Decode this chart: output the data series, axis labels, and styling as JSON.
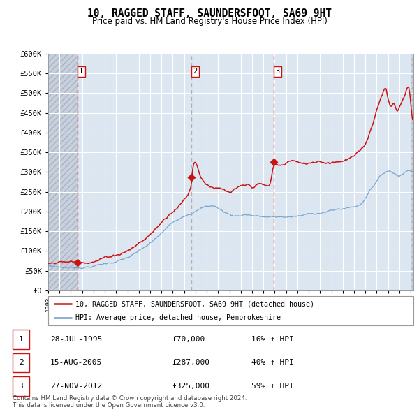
{
  "title": "10, RAGGED STAFF, SAUNDERSFOOT, SA69 9HT",
  "subtitle": "Price paid vs. HM Land Registry's House Price Index (HPI)",
  "ylim": [
    0,
    600000
  ],
  "yticks": [
    0,
    50000,
    100000,
    150000,
    200000,
    250000,
    300000,
    350000,
    400000,
    450000,
    500000,
    550000,
    600000
  ],
  "xlim_start": 1993.0,
  "xlim_end": 2025.25,
  "plot_bg_color": "#dce6f1",
  "hatch_color": "#c8d0dc",
  "grid_color": "#ffffff",
  "red_line_color": "#cc1111",
  "blue_line_color": "#6699cc",
  "sale_marker_color": "#cc1111",
  "sale_dates": [
    1995.57,
    2005.62,
    2012.91
  ],
  "sale_prices": [
    70000,
    287000,
    325000
  ],
  "sale_labels": [
    "1",
    "2",
    "3"
  ],
  "vline_colors": [
    "#dd3333",
    "#888888",
    "#dd3333"
  ],
  "footer_text": "Contains HM Land Registry data © Crown copyright and database right 2024.\nThis data is licensed under the Open Government Licence v3.0.",
  "legend_label_red": "10, RAGGED STAFF, SAUNDERSFOOT, SA69 9HT (detached house)",
  "legend_label_blue": "HPI: Average price, detached house, Pembrokeshire",
  "table_rows": [
    [
      "1",
      "28-JUL-1995",
      "£70,000",
      "16% ↑ HPI"
    ],
    [
      "2",
      "15-AUG-2005",
      "£287,000",
      "40% ↑ HPI"
    ],
    [
      "3",
      "27-NOV-2012",
      "£325,000",
      "59% ↑ HPI"
    ]
  ]
}
